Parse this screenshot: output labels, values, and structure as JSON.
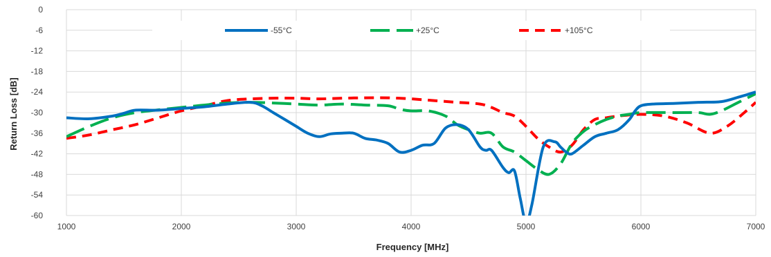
{
  "chart_data": {
    "type": "line",
    "title": "",
    "xlabel": "Frequency [MHz]",
    "ylabel": "Return Loss [dB]",
    "xlim": [
      1000,
      7000
    ],
    "ylim": [
      -60,
      0
    ],
    "xticks": [
      1000,
      2000,
      3000,
      4000,
      5000,
      6000,
      7000
    ],
    "yticks": [
      0,
      -6,
      -12,
      -18,
      -24,
      -30,
      -36,
      -42,
      -48,
      -54,
      -60
    ],
    "grid": true,
    "legend_position": "top",
    "series": [
      {
        "name": "-55°C",
        "color": "#0070c0",
        "dash": "solid",
        "points": [
          [
            1000,
            -31.5
          ],
          [
            1200,
            -31.8
          ],
          [
            1400,
            -31.0
          ],
          [
            1500,
            -30.2
          ],
          [
            1600,
            -29.3
          ],
          [
            1800,
            -29.3
          ],
          [
            2000,
            -28.8
          ],
          [
            2200,
            -28.3
          ],
          [
            2400,
            -27.5
          ],
          [
            2600,
            -27.0
          ],
          [
            2700,
            -28.0
          ],
          [
            2800,
            -30.0
          ],
          [
            2900,
            -32.0
          ],
          [
            3000,
            -34.0
          ],
          [
            3100,
            -36.0
          ],
          [
            3200,
            -37.0
          ],
          [
            3300,
            -36.2
          ],
          [
            3400,
            -36.0
          ],
          [
            3500,
            -36.0
          ],
          [
            3600,
            -37.5
          ],
          [
            3700,
            -38.0
          ],
          [
            3800,
            -39.0
          ],
          [
            3900,
            -41.5
          ],
          [
            4000,
            -41.0
          ],
          [
            4100,
            -39.5
          ],
          [
            4200,
            -39.0
          ],
          [
            4300,
            -34.5
          ],
          [
            4400,
            -33.5
          ],
          [
            4500,
            -35.0
          ],
          [
            4600,
            -40.0
          ],
          [
            4650,
            -41.0
          ],
          [
            4700,
            -41.0
          ],
          [
            4800,
            -46.0
          ],
          [
            4850,
            -47.5
          ],
          [
            4900,
            -47.0
          ],
          [
            4950,
            -55.0
          ],
          [
            5000,
            -62.0
          ],
          [
            5050,
            -57.0
          ],
          [
            5150,
            -40.0
          ],
          [
            5250,
            -38.5
          ],
          [
            5300,
            -40.0
          ],
          [
            5350,
            -41.5
          ],
          [
            5400,
            -42.0
          ],
          [
            5500,
            -39.5
          ],
          [
            5600,
            -37.0
          ],
          [
            5700,
            -36.0
          ],
          [
            5800,
            -35.0
          ],
          [
            5900,
            -32.0
          ],
          [
            5950,
            -29.5
          ],
          [
            6000,
            -28.0
          ],
          [
            6100,
            -27.5
          ],
          [
            6300,
            -27.3
          ],
          [
            6500,
            -27.0
          ],
          [
            6700,
            -26.8
          ],
          [
            6850,
            -25.5
          ],
          [
            7000,
            -24.0
          ]
        ]
      },
      {
        "name": "+25°C",
        "color": "#00b050",
        "dash": "long-dash",
        "points": [
          [
            1000,
            -37.0
          ],
          [
            1200,
            -34.0
          ],
          [
            1400,
            -31.5
          ],
          [
            1600,
            -30.0
          ],
          [
            1800,
            -29.2
          ],
          [
            2000,
            -28.5
          ],
          [
            2200,
            -27.8
          ],
          [
            2400,
            -27.2
          ],
          [
            2600,
            -27.0
          ],
          [
            2800,
            -27.2
          ],
          [
            3000,
            -27.5
          ],
          [
            3200,
            -27.8
          ],
          [
            3400,
            -27.5
          ],
          [
            3600,
            -27.8
          ],
          [
            3800,
            -28.0
          ],
          [
            3900,
            -29.0
          ],
          [
            4000,
            -29.5
          ],
          [
            4150,
            -29.5
          ],
          [
            4300,
            -31.0
          ],
          [
            4400,
            -33.5
          ],
          [
            4500,
            -35.0
          ],
          [
            4600,
            -36.0
          ],
          [
            4700,
            -36.0
          ],
          [
            4800,
            -40.0
          ],
          [
            4900,
            -41.5
          ],
          [
            5000,
            -44.0
          ],
          [
            5100,
            -46.5
          ],
          [
            5200,
            -48.0
          ],
          [
            5300,
            -45.0
          ],
          [
            5400,
            -39.0
          ],
          [
            5500,
            -35.5
          ],
          [
            5600,
            -33.5
          ],
          [
            5700,
            -32.0
          ],
          [
            5800,
            -31.0
          ],
          [
            5900,
            -30.5
          ],
          [
            6000,
            -30.0
          ],
          [
            6300,
            -30.0
          ],
          [
            6500,
            -30.0
          ],
          [
            6600,
            -30.5
          ],
          [
            6700,
            -29.5
          ],
          [
            6850,
            -27.0
          ],
          [
            7000,
            -24.5
          ]
        ]
      },
      {
        "name": "+105°C",
        "color": "#ff0000",
        "dash": "dash",
        "points": [
          [
            1000,
            -37.5
          ],
          [
            1200,
            -36.5
          ],
          [
            1400,
            -35.0
          ],
          [
            1600,
            -33.5
          ],
          [
            1800,
            -31.5
          ],
          [
            2000,
            -29.5
          ],
          [
            2200,
            -28.0
          ],
          [
            2400,
            -26.5
          ],
          [
            2600,
            -26.0
          ],
          [
            2800,
            -25.8
          ],
          [
            3000,
            -25.8
          ],
          [
            3200,
            -26.0
          ],
          [
            3400,
            -25.8
          ],
          [
            3600,
            -25.7
          ],
          [
            3800,
            -25.7
          ],
          [
            4000,
            -26.0
          ],
          [
            4200,
            -26.5
          ],
          [
            4400,
            -27.0
          ],
          [
            4600,
            -27.5
          ],
          [
            4700,
            -28.5
          ],
          [
            4800,
            -30.0
          ],
          [
            4900,
            -31.0
          ],
          [
            5000,
            -34.0
          ],
          [
            5100,
            -37.5
          ],
          [
            5200,
            -40.0
          ],
          [
            5300,
            -41.5
          ],
          [
            5400,
            -39.5
          ],
          [
            5500,
            -35.0
          ],
          [
            5600,
            -32.0
          ],
          [
            5700,
            -31.5
          ],
          [
            5800,
            -31.0
          ],
          [
            6000,
            -30.5
          ],
          [
            6200,
            -31.0
          ],
          [
            6400,
            -33.0
          ],
          [
            6600,
            -36.0
          ],
          [
            6750,
            -34.0
          ],
          [
            6900,
            -30.0
          ],
          [
            7000,
            -27.0
          ]
        ]
      }
    ]
  }
}
